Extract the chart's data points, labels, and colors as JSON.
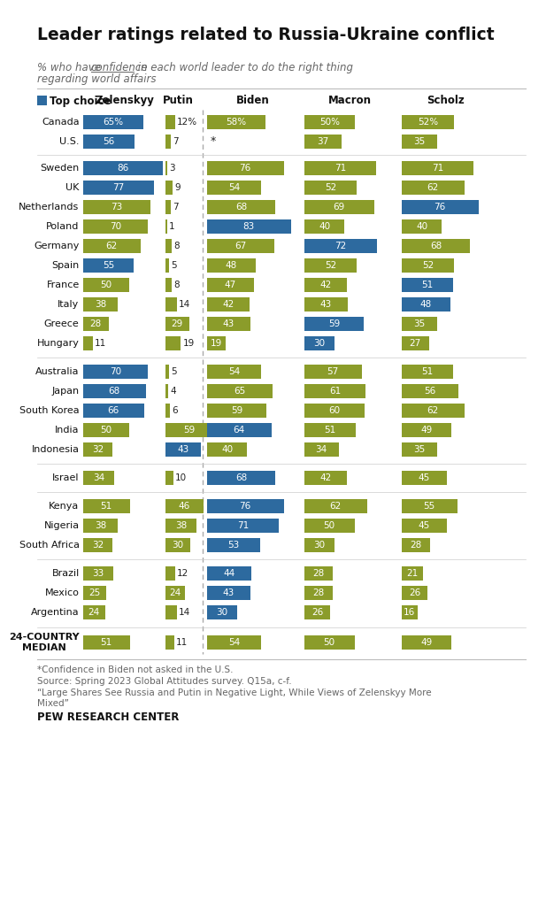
{
  "title": "Leader ratings related to Russia-Ukraine conflict",
  "blue_color": "#2d6a9f",
  "olive_color": "#8b9c2a",
  "bg_color": "#ffffff",
  "footnote1": "*Confidence in Biden not asked in the U.S.",
  "footnote2": "Source: Spring 2023 Global Attitudes survey. Q15a, c-f.",
  "footnote3": "“Large Shares See Russia and Putin in Negative Light, While Views of Zelenskyy More\nMixed”",
  "footnote4": "PEW RESEARCH CENTER",
  "rows": [
    {
      "country": "Canada",
      "group": 0,
      "zelenskyy": 65,
      "z_top": true,
      "putin": 12,
      "p_top": true,
      "biden": 58,
      "b_top": true,
      "macron": 50,
      "m_top": true,
      "scholz": 52,
      "s_top": true,
      "z_blue": true,
      "p_blue": false,
      "b_blue": false,
      "m_blue": false,
      "s_blue": false,
      "biden_na": false
    },
    {
      "country": "U.S.",
      "group": 0,
      "zelenskyy": 56,
      "z_top": false,
      "putin": 7,
      "p_top": false,
      "biden": null,
      "b_top": false,
      "macron": 37,
      "m_top": false,
      "scholz": 35,
      "s_top": false,
      "z_blue": true,
      "p_blue": false,
      "b_blue": false,
      "m_blue": false,
      "s_blue": false,
      "biden_na": true
    },
    {
      "country": "Sweden",
      "group": 1,
      "zelenskyy": 86,
      "z_top": false,
      "putin": 3,
      "p_top": false,
      "biden": 76,
      "b_top": false,
      "macron": 71,
      "m_top": false,
      "scholz": 71,
      "s_top": false,
      "z_blue": true,
      "p_blue": false,
      "b_blue": false,
      "m_blue": false,
      "s_blue": false,
      "biden_na": false
    },
    {
      "country": "UK",
      "group": 1,
      "zelenskyy": 77,
      "z_top": false,
      "putin": 9,
      "p_top": false,
      "biden": 54,
      "b_top": false,
      "macron": 52,
      "m_top": false,
      "scholz": 62,
      "s_top": false,
      "z_blue": true,
      "p_blue": false,
      "b_blue": false,
      "m_blue": false,
      "s_blue": false,
      "biden_na": false
    },
    {
      "country": "Netherlands",
      "group": 1,
      "zelenskyy": 73,
      "z_top": false,
      "putin": 7,
      "p_top": false,
      "biden": 68,
      "b_top": false,
      "macron": 69,
      "m_top": false,
      "scholz": 76,
      "s_top": false,
      "z_blue": false,
      "p_blue": false,
      "b_blue": false,
      "m_blue": false,
      "s_blue": true,
      "biden_na": false
    },
    {
      "country": "Poland",
      "group": 1,
      "zelenskyy": 70,
      "z_top": false,
      "putin": 1,
      "p_top": false,
      "biden": 83,
      "b_top": false,
      "macron": 40,
      "m_top": false,
      "scholz": 40,
      "s_top": false,
      "z_blue": false,
      "p_blue": false,
      "b_blue": true,
      "m_blue": false,
      "s_blue": false,
      "biden_na": false
    },
    {
      "country": "Germany",
      "group": 1,
      "zelenskyy": 62,
      "z_top": false,
      "putin": 8,
      "p_top": false,
      "biden": 67,
      "b_top": false,
      "macron": 72,
      "m_top": false,
      "scholz": 68,
      "s_top": false,
      "z_blue": false,
      "p_blue": false,
      "b_blue": false,
      "m_blue": true,
      "s_blue": false,
      "biden_na": false
    },
    {
      "country": "Spain",
      "group": 1,
      "zelenskyy": 55,
      "z_top": false,
      "putin": 5,
      "p_top": false,
      "biden": 48,
      "b_top": false,
      "macron": 52,
      "m_top": false,
      "scholz": 52,
      "s_top": false,
      "z_blue": true,
      "p_blue": false,
      "b_blue": false,
      "m_blue": false,
      "s_blue": false,
      "biden_na": false
    },
    {
      "country": "France",
      "group": 1,
      "zelenskyy": 50,
      "z_top": false,
      "putin": 8,
      "p_top": false,
      "biden": 47,
      "b_top": false,
      "macron": 42,
      "m_top": false,
      "scholz": 51,
      "s_top": false,
      "z_blue": false,
      "p_blue": false,
      "b_blue": false,
      "m_blue": false,
      "s_blue": true,
      "biden_na": false
    },
    {
      "country": "Italy",
      "group": 1,
      "zelenskyy": 38,
      "z_top": false,
      "putin": 14,
      "p_top": false,
      "biden": 42,
      "b_top": false,
      "macron": 43,
      "m_top": false,
      "scholz": 48,
      "s_top": false,
      "z_blue": false,
      "p_blue": false,
      "b_blue": false,
      "m_blue": false,
      "s_blue": true,
      "biden_na": false
    },
    {
      "country": "Greece",
      "group": 1,
      "zelenskyy": 28,
      "z_top": false,
      "putin": 29,
      "p_top": false,
      "biden": 43,
      "b_top": false,
      "macron": 59,
      "m_top": false,
      "scholz": 35,
      "s_top": false,
      "z_blue": false,
      "p_blue": false,
      "b_blue": false,
      "m_blue": true,
      "s_blue": false,
      "biden_na": false
    },
    {
      "country": "Hungary",
      "group": 1,
      "zelenskyy": 11,
      "z_top": false,
      "putin": 19,
      "p_top": false,
      "biden": 19,
      "b_top": false,
      "macron": 30,
      "m_top": false,
      "scholz": 27,
      "s_top": false,
      "z_blue": false,
      "p_blue": false,
      "b_blue": false,
      "m_blue": true,
      "s_blue": false,
      "biden_na": false
    },
    {
      "country": "Australia",
      "group": 2,
      "zelenskyy": 70,
      "z_top": false,
      "putin": 5,
      "p_top": false,
      "biden": 54,
      "b_top": false,
      "macron": 57,
      "m_top": false,
      "scholz": 51,
      "s_top": false,
      "z_blue": true,
      "p_blue": false,
      "b_blue": false,
      "m_blue": false,
      "s_blue": false,
      "biden_na": false
    },
    {
      "country": "Japan",
      "group": 2,
      "zelenskyy": 68,
      "z_top": false,
      "putin": 4,
      "p_top": false,
      "biden": 65,
      "b_top": false,
      "macron": 61,
      "m_top": false,
      "scholz": 56,
      "s_top": false,
      "z_blue": true,
      "p_blue": false,
      "b_blue": false,
      "m_blue": false,
      "s_blue": false,
      "biden_na": false
    },
    {
      "country": "South Korea",
      "group": 2,
      "zelenskyy": 66,
      "z_top": false,
      "putin": 6,
      "p_top": false,
      "biden": 59,
      "b_top": false,
      "macron": 60,
      "m_top": false,
      "scholz": 62,
      "s_top": false,
      "z_blue": true,
      "p_blue": false,
      "b_blue": false,
      "m_blue": false,
      "s_blue": false,
      "biden_na": false
    },
    {
      "country": "India",
      "group": 2,
      "zelenskyy": 50,
      "z_top": false,
      "putin": 59,
      "p_top": false,
      "biden": 64,
      "b_top": false,
      "macron": 51,
      "m_top": false,
      "scholz": 49,
      "s_top": false,
      "z_blue": false,
      "p_blue": false,
      "b_blue": true,
      "m_blue": false,
      "s_blue": false,
      "biden_na": false
    },
    {
      "country": "Indonesia",
      "group": 2,
      "zelenskyy": 32,
      "z_top": false,
      "putin": 43,
      "p_top": false,
      "biden": 40,
      "b_top": false,
      "macron": 34,
      "m_top": false,
      "scholz": 35,
      "s_top": false,
      "z_blue": false,
      "p_blue": true,
      "b_blue": false,
      "m_blue": false,
      "s_blue": false,
      "biden_na": false
    },
    {
      "country": "Israel",
      "group": 3,
      "zelenskyy": 34,
      "z_top": false,
      "putin": 10,
      "p_top": false,
      "biden": 68,
      "b_top": false,
      "macron": 42,
      "m_top": false,
      "scholz": 45,
      "s_top": false,
      "z_blue": false,
      "p_blue": false,
      "b_blue": true,
      "m_blue": false,
      "s_blue": false,
      "biden_na": false
    },
    {
      "country": "Kenya",
      "group": 4,
      "zelenskyy": 51,
      "z_top": false,
      "putin": 46,
      "p_top": false,
      "biden": 76,
      "b_top": false,
      "macron": 62,
      "m_top": false,
      "scholz": 55,
      "s_top": false,
      "z_blue": false,
      "p_blue": false,
      "b_blue": true,
      "m_blue": false,
      "s_blue": false,
      "biden_na": false
    },
    {
      "country": "Nigeria",
      "group": 4,
      "zelenskyy": 38,
      "z_top": false,
      "putin": 38,
      "p_top": false,
      "biden": 71,
      "b_top": false,
      "macron": 50,
      "m_top": false,
      "scholz": 45,
      "s_top": false,
      "z_blue": false,
      "p_blue": false,
      "b_blue": true,
      "m_blue": false,
      "s_blue": false,
      "biden_na": false
    },
    {
      "country": "South Africa",
      "group": 4,
      "zelenskyy": 32,
      "z_top": false,
      "putin": 30,
      "p_top": false,
      "biden": 53,
      "b_top": false,
      "macron": 30,
      "m_top": false,
      "scholz": 28,
      "s_top": false,
      "z_blue": false,
      "p_blue": false,
      "b_blue": true,
      "m_blue": false,
      "s_blue": false,
      "biden_na": false
    },
    {
      "country": "Brazil",
      "group": 5,
      "zelenskyy": 33,
      "z_top": false,
      "putin": 12,
      "p_top": false,
      "biden": 44,
      "b_top": false,
      "macron": 28,
      "m_top": false,
      "scholz": 21,
      "s_top": false,
      "z_blue": false,
      "p_blue": false,
      "b_blue": true,
      "m_blue": false,
      "s_blue": false,
      "biden_na": false
    },
    {
      "country": "Mexico",
      "group": 5,
      "zelenskyy": 25,
      "z_top": false,
      "putin": 24,
      "p_top": false,
      "biden": 43,
      "b_top": false,
      "macron": 28,
      "m_top": false,
      "scholz": 26,
      "s_top": false,
      "z_blue": false,
      "p_blue": false,
      "b_blue": true,
      "m_blue": false,
      "s_blue": false,
      "biden_na": false
    },
    {
      "country": "Argentina",
      "group": 5,
      "zelenskyy": 24,
      "z_top": false,
      "putin": 14,
      "p_top": false,
      "biden": 30,
      "b_top": false,
      "macron": 26,
      "m_top": false,
      "scholz": 16,
      "s_top": false,
      "z_blue": false,
      "p_blue": false,
      "b_blue": true,
      "m_blue": false,
      "s_blue": false,
      "biden_na": false
    },
    {
      "country": "24-COUNTRY\nMEDIAN",
      "group": 6,
      "zelenskyy": 51,
      "z_top": false,
      "putin": 11,
      "p_top": false,
      "biden": 54,
      "b_top": false,
      "macron": 50,
      "m_top": false,
      "scholz": 49,
      "s_top": false,
      "z_blue": false,
      "p_blue": false,
      "b_blue": false,
      "m_blue": false,
      "s_blue": false,
      "biden_na": false
    }
  ]
}
